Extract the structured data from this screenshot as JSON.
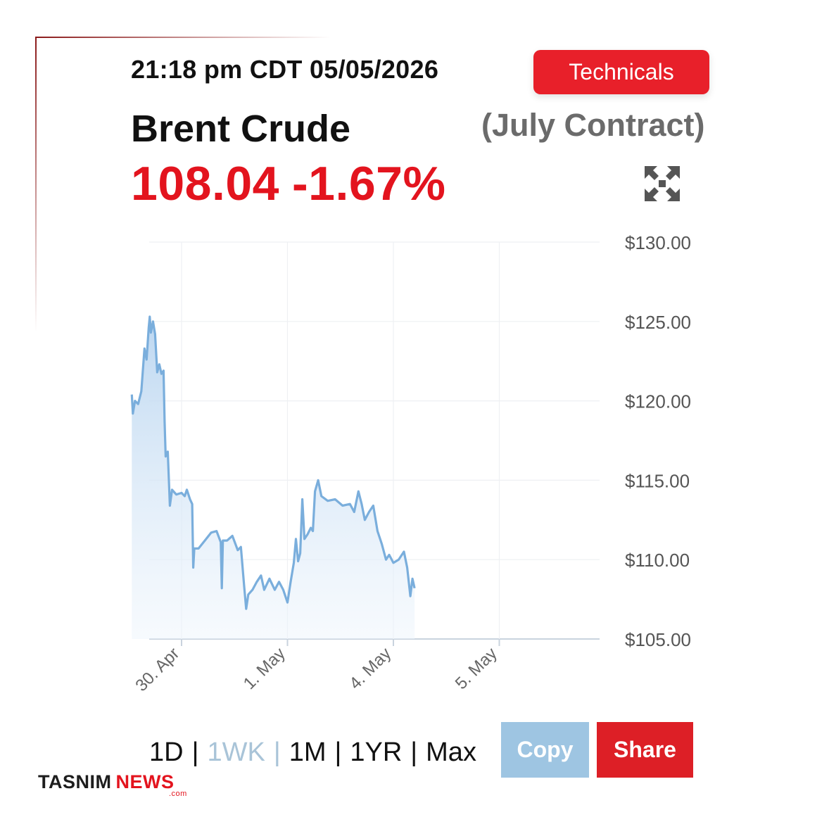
{
  "header": {
    "timestamp": "21:18 pm CDT 05/05/2026",
    "technicals_label": "Technicals",
    "title": "Brent Crude",
    "contract": "(July Contract)",
    "price": "108.04",
    "change": "-1.67%",
    "expand_icon": "expand-arrows-icon"
  },
  "colors": {
    "accent_red": "#e3141e",
    "line_blue": "#7aaedc",
    "copy_blue": "#9ec5e2"
  },
  "chart_data": {
    "type": "area",
    "title": "",
    "xlabel": "",
    "ylabel": "",
    "ylim": [
      105,
      130
    ],
    "y_ticks": [
      "$105.00",
      "$110.00",
      "$115.00",
      "$120.00",
      "$125.00",
      "$130.00"
    ],
    "y_tick_values": [
      105,
      110,
      115,
      120,
      125,
      130
    ],
    "x_ticks": [
      "30. Apr",
      "1. May",
      "4. May",
      "5. May"
    ],
    "x_tick_values": [
      0.5,
      1.5,
      2.5,
      3.5
    ],
    "grid": true,
    "series": [
      {
        "values": [
          [
            0.03,
            120.4
          ],
          [
            0.04,
            119.2
          ],
          [
            0.06,
            120.0
          ],
          [
            0.09,
            119.8
          ],
          [
            0.12,
            120.6
          ],
          [
            0.15,
            123.3
          ],
          [
            0.17,
            122.6
          ],
          [
            0.19,
            124.6
          ],
          [
            0.2,
            125.3
          ],
          [
            0.21,
            124.3
          ],
          [
            0.23,
            125.0
          ],
          [
            0.25,
            124.2
          ],
          [
            0.27,
            121.8
          ],
          [
            0.29,
            122.3
          ],
          [
            0.31,
            121.7
          ],
          [
            0.33,
            121.9
          ],
          [
            0.34,
            118.7
          ],
          [
            0.35,
            116.5
          ],
          [
            0.37,
            116.8
          ],
          [
            0.39,
            113.4
          ],
          [
            0.41,
            114.4
          ],
          [
            0.45,
            114.1
          ],
          [
            0.5,
            114.2
          ],
          [
            0.53,
            114.0
          ],
          [
            0.55,
            114.4
          ],
          [
            0.58,
            113.8
          ],
          [
            0.6,
            113.5
          ],
          [
            0.61,
            109.5
          ],
          [
            0.62,
            110.7
          ],
          [
            0.66,
            110.7
          ],
          [
            0.72,
            111.2
          ],
          [
            0.78,
            111.7
          ],
          [
            0.83,
            111.8
          ],
          [
            0.87,
            111.1
          ],
          [
            0.88,
            108.2
          ],
          [
            0.89,
            111.2
          ],
          [
            0.93,
            111.2
          ],
          [
            0.98,
            111.5
          ],
          [
            1.03,
            110.6
          ],
          [
            1.06,
            110.8
          ],
          [
            1.09,
            108.4
          ],
          [
            1.11,
            106.9
          ],
          [
            1.13,
            107.8
          ],
          [
            1.17,
            108.1
          ],
          [
            1.21,
            108.6
          ],
          [
            1.25,
            109.0
          ],
          [
            1.28,
            108.1
          ],
          [
            1.33,
            108.8
          ],
          [
            1.38,
            108.1
          ],
          [
            1.42,
            108.6
          ],
          [
            1.46,
            108.1
          ],
          [
            1.5,
            107.3
          ],
          [
            1.53,
            108.6
          ],
          [
            1.56,
            109.8
          ],
          [
            1.58,
            111.3
          ],
          [
            1.6,
            109.9
          ],
          [
            1.62,
            110.4
          ],
          [
            1.64,
            113.8
          ],
          [
            1.66,
            111.3
          ],
          [
            1.69,
            111.6
          ],
          [
            1.72,
            112.0
          ],
          [
            1.74,
            111.8
          ],
          [
            1.76,
            114.3
          ],
          [
            1.79,
            115.0
          ],
          [
            1.82,
            114.0
          ],
          [
            1.88,
            113.7
          ],
          [
            1.95,
            113.8
          ],
          [
            2.02,
            113.4
          ],
          [
            2.09,
            113.5
          ],
          [
            2.13,
            113.0
          ],
          [
            2.17,
            114.3
          ],
          [
            2.2,
            113.5
          ],
          [
            2.23,
            112.5
          ],
          [
            2.27,
            113.0
          ],
          [
            2.31,
            113.4
          ],
          [
            2.35,
            111.8
          ],
          [
            2.39,
            111.0
          ],
          [
            2.43,
            110.0
          ],
          [
            2.46,
            110.3
          ],
          [
            2.5,
            109.8
          ],
          [
            2.55,
            110.0
          ],
          [
            2.6,
            110.5
          ],
          [
            2.63,
            109.5
          ],
          [
            2.66,
            107.7
          ],
          [
            2.68,
            108.8
          ],
          [
            2.7,
            108.2
          ]
        ]
      }
    ]
  },
  "ranges": {
    "items": [
      "1D",
      "1WK",
      "1M",
      "1YR",
      "Max"
    ],
    "active": "1WK",
    "separator": "|"
  },
  "actions": {
    "copy_label": "Copy",
    "share_label": "Share"
  },
  "logo": {
    "part1": "TASNIM",
    "part2": "NEWS",
    "suffix": ".com"
  }
}
